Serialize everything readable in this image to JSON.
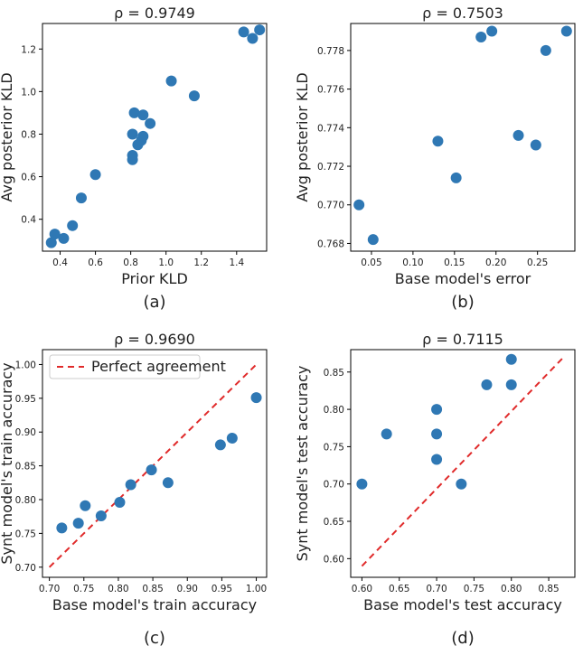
{
  "chart_data": [
    {
      "type": "scatter",
      "panel": "a",
      "title": "ρ = 0.9749",
      "xlabel": "Prior KLD",
      "ylabel": "Avg posterior KLD",
      "caption": "(a)",
      "xlim": [
        0.3,
        1.57
      ],
      "ylim": [
        0.25,
        1.32
      ],
      "xticks": [
        0.4,
        0.6,
        0.8,
        1.0,
        1.2,
        1.4
      ],
      "xtick_labels": [
        "0.4",
        "0.6",
        "0.8",
        "1.0",
        "1.2",
        "1.4"
      ],
      "yticks": [
        0.4,
        0.6,
        0.8,
        1.0,
        1.2
      ],
      "ytick_labels": [
        "0.4",
        "0.6",
        "0.8",
        "1.0",
        "1.2"
      ],
      "x": [
        0.35,
        0.37,
        0.42,
        0.47,
        0.52,
        0.6,
        0.81,
        0.81,
        0.81,
        0.82,
        0.84,
        0.86,
        0.87,
        0.87,
        0.91,
        1.03,
        1.16,
        1.44,
        1.49,
        1.53
      ],
      "y": [
        0.29,
        0.33,
        0.31,
        0.37,
        0.5,
        0.61,
        0.68,
        0.7,
        0.8,
        0.9,
        0.75,
        0.77,
        0.79,
        0.89,
        0.85,
        1.05,
        0.98,
        1.28,
        1.25,
        1.29
      ]
    },
    {
      "type": "scatter",
      "panel": "b",
      "title": "ρ = 0.7503",
      "xlabel": "Base model's error",
      "ylabel": "Avg posterior KLD",
      "caption": "(b)",
      "xlim": [
        0.025,
        0.295
      ],
      "ylim": [
        0.7676,
        0.7794
      ],
      "xticks": [
        0.05,
        0.1,
        0.15,
        0.2,
        0.25
      ],
      "xtick_labels": [
        "0.05",
        "0.10",
        "0.15",
        "0.20",
        "0.25"
      ],
      "yticks": [
        0.768,
        0.77,
        0.772,
        0.774,
        0.776,
        0.778
      ],
      "ytick_labels": [
        "0.768",
        "0.770",
        "0.772",
        "0.774",
        "0.776",
        "0.778"
      ],
      "x": [
        0.035,
        0.052,
        0.13,
        0.152,
        0.182,
        0.195,
        0.227,
        0.248,
        0.26,
        0.285
      ],
      "y": [
        0.77,
        0.7682,
        0.7733,
        0.7714,
        0.7787,
        0.779,
        0.7736,
        0.7731,
        0.778,
        0.779
      ]
    },
    {
      "type": "scatter",
      "panel": "c",
      "title": "ρ = 0.9690",
      "xlabel": "Base model's train accuracy",
      "ylabel": "Synt model's train accuracy",
      "caption": "(c)",
      "xlim": [
        0.69,
        1.015
      ],
      "ylim": [
        0.685,
        1.022
      ],
      "xticks": [
        0.7,
        0.75,
        0.8,
        0.85,
        0.9,
        0.95,
        1.0
      ],
      "xtick_labels": [
        "0.70",
        "0.75",
        "0.80",
        "0.85",
        "0.90",
        "0.95",
        "1.00"
      ],
      "yticks": [
        0.7,
        0.75,
        0.8,
        0.85,
        0.9,
        0.95,
        1.0
      ],
      "ytick_labels": [
        "0.70",
        "0.75",
        "0.80",
        "0.85",
        "0.90",
        "0.95",
        "1.00"
      ],
      "x": [
        0.718,
        0.742,
        0.752,
        0.775,
        0.802,
        0.818,
        0.848,
        0.872,
        0.948,
        0.965,
        1.0
      ],
      "y": [
        0.758,
        0.765,
        0.791,
        0.776,
        0.796,
        0.822,
        0.844,
        0.825,
        0.881,
        0.891,
        0.951
      ],
      "reference_line": {
        "name": "Perfect agreement",
        "x": [
          0.7,
          1.0
        ],
        "y": [
          0.7,
          1.0
        ]
      },
      "legend": "top-left"
    },
    {
      "type": "scatter",
      "panel": "d",
      "title": "ρ = 0.7115",
      "xlabel": "Base model's test accuracy",
      "ylabel": "Synt model's test accuracy",
      "caption": "(d)",
      "xlim": [
        0.585,
        0.885
      ],
      "ylim": [
        0.575,
        0.88
      ],
      "xticks": [
        0.6,
        0.65,
        0.7,
        0.75,
        0.8,
        0.85
      ],
      "xtick_labels": [
        "0.60",
        "0.65",
        "0.70",
        "0.75",
        "0.80",
        "0.85"
      ],
      "yticks": [
        0.6,
        0.65,
        0.7,
        0.75,
        0.8,
        0.85
      ],
      "ytick_labels": [
        "0.60",
        "0.65",
        "0.70",
        "0.75",
        "0.80",
        "0.85"
      ],
      "x": [
        0.6,
        0.633,
        0.7,
        0.7,
        0.7,
        0.733,
        0.767,
        0.8,
        0.8
      ],
      "y": [
        0.7,
        0.767,
        0.733,
        0.767,
        0.8,
        0.7,
        0.833,
        0.833,
        0.867
      ],
      "reference_line": {
        "name": "Perfect agreement",
        "x": [
          0.6,
          0.87
        ],
        "y": [
          0.59,
          0.87
        ]
      },
      "show_legend": false
    }
  ]
}
